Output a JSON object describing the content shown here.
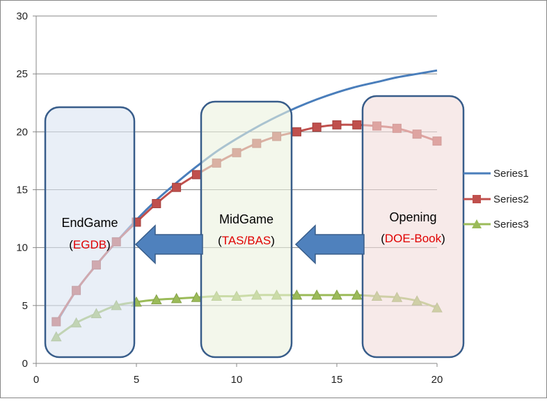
{
  "chart_data": {
    "type": "line",
    "xlim": [
      0,
      20
    ],
    "ylim": [
      0,
      30
    ],
    "x_ticks": [
      "0",
      "5",
      "10",
      "15",
      "20"
    ],
    "y_ticks": [
      "0",
      "5",
      "10",
      "15",
      "20",
      "25",
      "30"
    ],
    "grid": "horizontal",
    "legend_position": "right",
    "series": [
      {
        "name": "Series1",
        "color": "#4a7ebb",
        "marker": "none",
        "x": [
          1,
          2,
          3,
          4,
          5,
          6,
          7,
          8,
          9,
          10,
          11,
          12,
          13,
          14,
          15,
          16,
          17,
          18,
          19,
          20
        ],
        "values": [
          3.5,
          6.3,
          8.5,
          10.5,
          12.4,
          14.1,
          15.6,
          17.0,
          18.3,
          19.4,
          20.4,
          21.3,
          22.1,
          22.8,
          23.4,
          23.9,
          24.3,
          24.7,
          25.0,
          25.3
        ]
      },
      {
        "name": "Series2",
        "color": "#c0504d",
        "marker": "square",
        "x": [
          1,
          2,
          3,
          4,
          5,
          6,
          7,
          8,
          9,
          10,
          11,
          12,
          13,
          14,
          15,
          16,
          17,
          18,
          19,
          20
        ],
        "values": [
          3.6,
          6.3,
          8.5,
          10.5,
          12.2,
          13.8,
          15.2,
          16.3,
          17.3,
          18.2,
          19.0,
          19.6,
          20.0,
          20.4,
          20.6,
          20.6,
          20.5,
          20.3,
          19.8,
          19.2
        ]
      },
      {
        "name": "Series3",
        "color": "#9bbb59",
        "marker": "triangle",
        "x": [
          1,
          2,
          3,
          4,
          5,
          6,
          7,
          8,
          9,
          10,
          11,
          12,
          13,
          14,
          15,
          16,
          17,
          18,
          19,
          20
        ],
        "values": [
          2.3,
          3.5,
          4.3,
          5.0,
          5.3,
          5.5,
          5.6,
          5.7,
          5.8,
          5.8,
          5.9,
          5.9,
          5.9,
          5.9,
          5.9,
          5.9,
          5.8,
          5.7,
          5.4,
          4.8
        ]
      }
    ],
    "annotations": [
      {
        "title": "EndGame",
        "subtitle": "EGDB",
        "fill": "#dbe5f1"
      },
      {
        "title": "MidGame",
        "subtitle": "TAS/BAS",
        "fill": "#ebf1de"
      },
      {
        "title": "Opening",
        "subtitle": "DOE-Book",
        "fill": "#f2dcdb"
      }
    ],
    "arrow_color": "#4f81bd",
    "box_border": "#385d8a",
    "subtitle_color": "#e00000"
  }
}
